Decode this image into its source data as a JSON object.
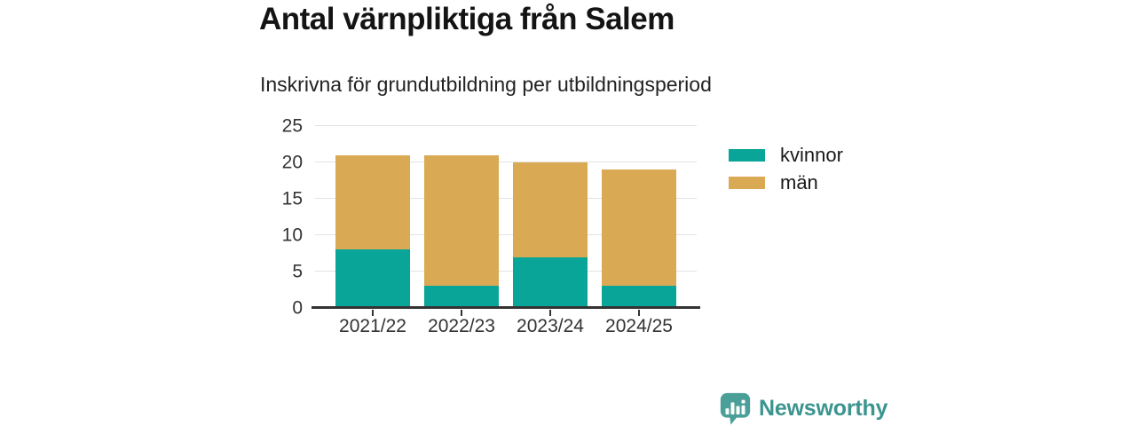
{
  "header": {
    "title": "Antal värnpliktiga från Salem",
    "subtitle": "Inskrivna för grundutbildning per utbildningsperiod"
  },
  "chart_data": {
    "type": "bar",
    "stacked": true,
    "title": "Antal värnpliktiga från Salem",
    "subtitle": "Inskrivna för grundutbildning per utbildningsperiod",
    "categories": [
      "2021/22",
      "2022/23",
      "2023/24",
      "2024/25"
    ],
    "series": [
      {
        "name": "kvinnor",
        "color": "#09a598",
        "values": [
          8,
          3,
          7,
          3
        ]
      },
      {
        "name": "män",
        "color": "#daa953",
        "values": [
          13,
          18,
          13,
          16
        ]
      }
    ],
    "stack_totals": [
      21,
      21,
      20,
      19
    ],
    "xlabel": "",
    "ylabel": "",
    "ylim": [
      0,
      25
    ],
    "yticks": [
      0,
      5,
      10,
      15,
      20,
      25
    ],
    "grid": true,
    "legend_position": "right-top"
  },
  "footer": {
    "brand": "Newsworthy",
    "brand_color": "#3b948e",
    "logo_color": "#4a9f99",
    "logo_icon": "bar-chart-speech-bubble-icon"
  }
}
